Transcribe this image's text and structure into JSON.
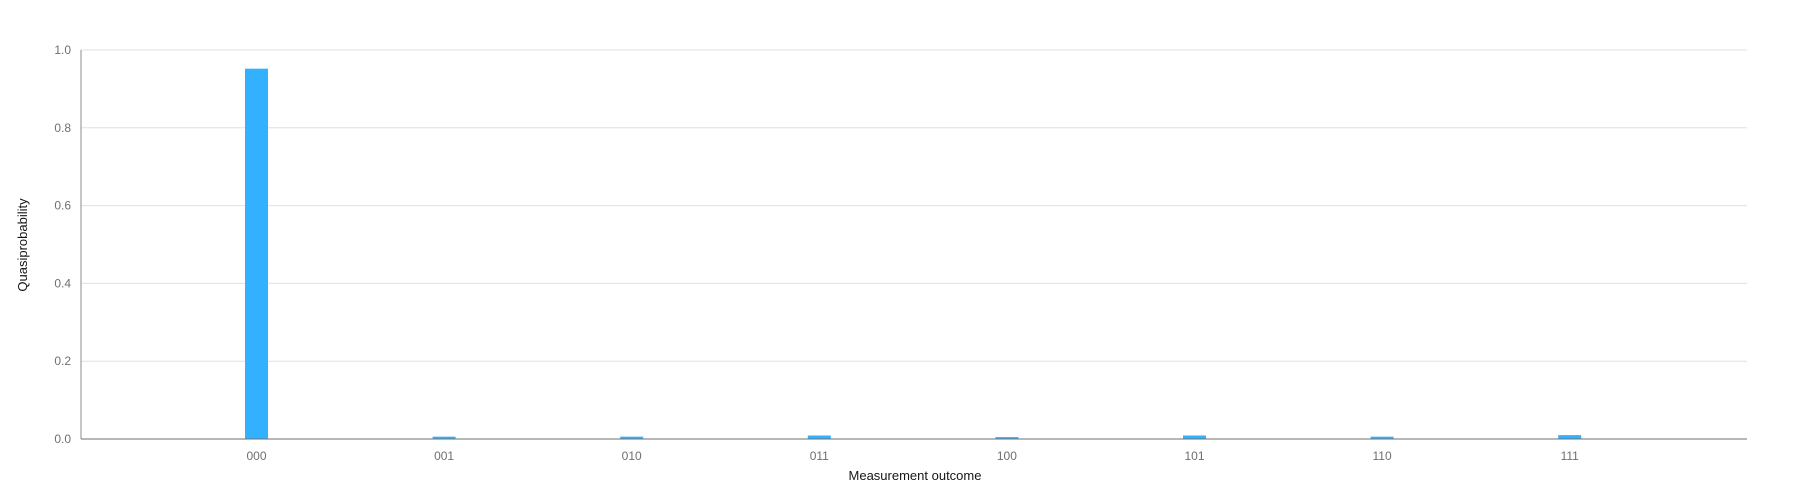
{
  "chart_data": {
    "type": "bar",
    "title": "",
    "xlabel": "Measurement outcome",
    "ylabel": "Quasiprobability",
    "categories": [
      "000",
      "001",
      "010",
      "011",
      "100",
      "101",
      "110",
      "111"
    ],
    "values": [
      0.952,
      0.006,
      0.006,
      0.009,
      0.005,
      0.009,
      0.006,
      0.01
    ],
    "ylim": [
      0,
      1.0
    ],
    "yticks": [
      "0.0",
      "0.2",
      "0.4",
      "0.6",
      "0.8",
      "1.0"
    ],
    "grid": true,
    "legend": "none",
    "bar_color": "#33b1ff",
    "grid_color": "#e0e0e0",
    "axis_color": "#8d8d8d"
  }
}
